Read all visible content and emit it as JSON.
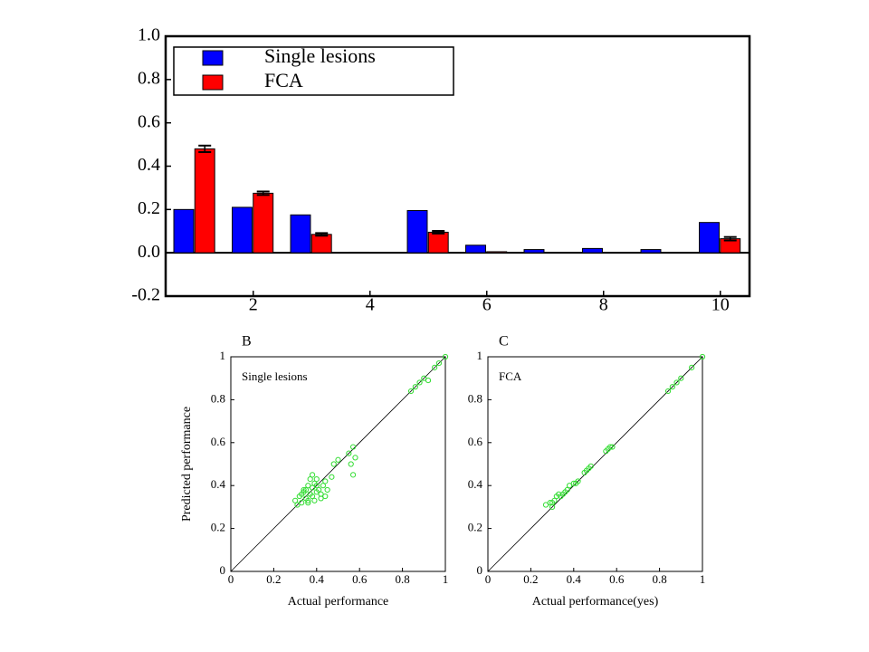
{
  "chart_data": [
    {
      "type": "bar",
      "categories": [
        1,
        2,
        3,
        4,
        5,
        6,
        7,
        8,
        9,
        10
      ],
      "series": [
        {
          "name": "Single lesions",
          "color": "#0000ff",
          "values": [
            0.2,
            0.21,
            0.175,
            0.002,
            0.195,
            0.035,
            0.015,
            0.02,
            0.015,
            0.14
          ]
        },
        {
          "name": "FCA",
          "color": "#ff0000",
          "values": [
            0.48,
            0.275,
            0.085,
            0,
            0.095,
            0.005,
            0,
            0,
            0,
            0.065
          ],
          "errors": [
            0.015,
            0.008,
            0.006,
            0,
            0.006,
            0,
            0,
            0,
            0,
            0.008
          ]
        }
      ],
      "xlim": [
        0.5,
        10.5
      ],
      "xticks": [
        2,
        4,
        6,
        8,
        10
      ],
      "ylim": [
        -0.2,
        1
      ],
      "yticks": [
        -0.2,
        {
          "value": 0,
          "label": "0.0"
        },
        0.2,
        0.4,
        0.6,
        0.8,
        {
          "value": 1,
          "label": "1.0"
        }
      ],
      "legend": "upper-left"
    },
    {
      "type": "scatter",
      "label": "B",
      "annotation": "Single lesions",
      "x_label": "Actual performance",
      "y_label": "Predicted performance",
      "x": [
        0.3,
        0.31,
        0.32,
        0.33,
        0.33,
        0.34,
        0.35,
        0.35,
        0.36,
        0.36,
        0.37,
        0.37,
        0.38,
        0.38,
        0.39,
        0.39,
        0.4,
        0.4,
        0.41,
        0.42,
        0.43,
        0.44,
        0.45,
        0.47,
        0.48,
        0.5,
        0.55,
        0.56,
        0.57,
        0.58,
        0.57,
        0.84,
        0.86,
        0.88,
        0.9,
        0.92,
        0.95,
        0.97,
        1.0,
        0.38,
        0.4,
        0.42,
        0.36,
        0.34,
        0.44
      ],
      "series": [
        {
          "color": "#33dd33",
          "values": [
            0.33,
            0.31,
            0.35,
            0.36,
            0.32,
            0.37,
            0.34,
            0.38,
            0.4,
            0.33,
            0.36,
            0.43,
            0.39,
            0.35,
            0.41,
            0.33,
            0.37,
            0.43,
            0.38,
            0.36,
            0.4,
            0.42,
            0.38,
            0.44,
            0.5,
            0.52,
            0.55,
            0.5,
            0.58,
            0.53,
            0.45,
            0.84,
            0.86,
            0.88,
            0.9,
            0.89,
            0.95,
            0.97,
            1.0,
            0.45,
            0.4,
            0.34,
            0.32,
            0.38,
            0.35
          ]
        }
      ],
      "xlim": [
        0,
        1
      ],
      "ylim": [
        0,
        1
      ],
      "xticks": [
        0,
        0.2,
        0.4,
        0.6,
        0.8,
        1
      ],
      "yticks": [
        0,
        0.2,
        0.4,
        0.6,
        0.8,
        1
      ],
      "diagonal": true
    },
    {
      "type": "scatter",
      "label": "C",
      "annotation": "FCA",
      "x_label": "Actual performance(yes)",
      "x": [
        0.27,
        0.29,
        0.3,
        0.31,
        0.32,
        0.33,
        0.35,
        0.36,
        0.37,
        0.38,
        0.4,
        0.41,
        0.42,
        0.45,
        0.46,
        0.47,
        0.48,
        0.55,
        0.56,
        0.57,
        0.58,
        0.84,
        0.86,
        0.88,
        0.9,
        0.95,
        1.0,
        0.3,
        0.34
      ],
      "series": [
        {
          "color": "#33dd33",
          "values": [
            0.31,
            0.32,
            0.3,
            0.33,
            0.35,
            0.36,
            0.36,
            0.37,
            0.38,
            0.4,
            0.41,
            0.41,
            0.42,
            0.46,
            0.47,
            0.48,
            0.49,
            0.56,
            0.57,
            0.58,
            0.58,
            0.84,
            0.86,
            0.88,
            0.9,
            0.95,
            1.0,
            0.32,
            0.35
          ]
        }
      ],
      "xlim": [
        0,
        1
      ],
      "ylim": [
        0,
        1
      ],
      "xticks": [
        0,
        0.2,
        0.4,
        0.6,
        0.8,
        1
      ],
      "yticks": [
        0,
        0.2,
        0.4,
        0.6,
        0.8,
        1
      ],
      "diagonal": true
    }
  ]
}
